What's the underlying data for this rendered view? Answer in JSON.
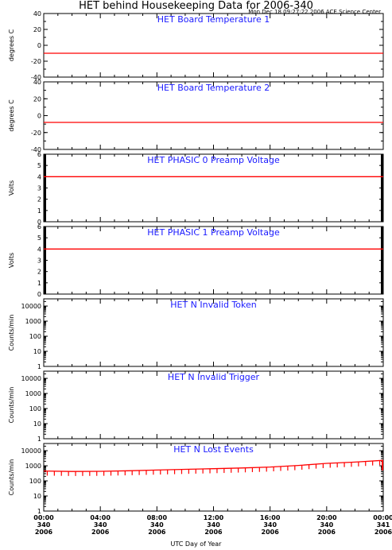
{
  "title": "HET behind Housekeeping Data for 2006-340",
  "timestamp": "Mon Dec 18 09:27:22 2006 ACE Science Center",
  "x_axis_title": "UTC Day of Year",
  "colors": {
    "title_text": "#1a1aff",
    "trace": "#ff0000",
    "axes": "#000000"
  },
  "chart_data": [
    {
      "type": "line",
      "title": "HET Board Temperature 1",
      "ylabel": "degrees C",
      "ylim": [
        -40,
        40
      ],
      "yticks": [
        -40,
        -20,
        0,
        20,
        40
      ],
      "scale": "linear",
      "series": [
        {
          "x": [
            0,
            24
          ],
          "y": [
            -10,
            -10
          ]
        }
      ]
    },
    {
      "type": "line",
      "title": "HET Board Temperature 2",
      "ylabel": "degrees C",
      "ylim": [
        -40,
        40
      ],
      "yticks": [
        -40,
        -20,
        0,
        20,
        40
      ],
      "scale": "linear",
      "series": [
        {
          "x": [
            0,
            24
          ],
          "y": [
            -8,
            -8
          ]
        }
      ]
    },
    {
      "type": "line",
      "title": "HET PHASIC 0 Preamp Voltage",
      "ylabel": "Volts",
      "ylim": [
        0,
        6
      ],
      "yticks": [
        0,
        1,
        2,
        3,
        4,
        5,
        6
      ],
      "scale": "linear",
      "series": [
        {
          "x": [
            0,
            24
          ],
          "y": [
            4,
            4
          ]
        }
      ]
    },
    {
      "type": "line",
      "title": "HET PHASIC 1 Preamp Voltage",
      "ylabel": "Volts",
      "ylim": [
        0,
        6
      ],
      "yticks": [
        0,
        1,
        2,
        3,
        4,
        5,
        6
      ],
      "scale": "linear",
      "series": [
        {
          "x": [
            0,
            24
          ],
          "y": [
            4,
            4
          ]
        }
      ]
    },
    {
      "type": "line",
      "title": "HET N Invalid Token",
      "ylabel": "Counts/min",
      "ylim": [
        1,
        30000
      ],
      "yticks": [
        1,
        10,
        100,
        1000,
        10000
      ],
      "scale": "log",
      "series": []
    },
    {
      "type": "line",
      "title": "HET N Invalid Trigger",
      "ylabel": "Counts/min",
      "ylim": [
        1,
        30000
      ],
      "yticks": [
        1,
        10,
        100,
        1000,
        10000
      ],
      "scale": "log",
      "series": []
    },
    {
      "type": "line",
      "title": "HET N Lost Events",
      "ylabel": "Counts/min",
      "ylim": [
        1,
        30000
      ],
      "yticks": [
        1,
        10,
        100,
        1000,
        10000
      ],
      "scale": "log",
      "series": [
        {
          "x": [
            0,
            2,
            4,
            6,
            8,
            10,
            12,
            14,
            16,
            18,
            20,
            22,
            24
          ],
          "y": [
            450,
            420,
            430,
            470,
            520,
            580,
            640,
            720,
            830,
            1050,
            1450,
            1750,
            2300
          ]
        }
      ]
    }
  ],
  "x_ticks": [
    {
      "time": "00:00",
      "doy": "340",
      "year": "2006"
    },
    {
      "time": "04:00",
      "doy": "340",
      "year": "2006"
    },
    {
      "time": "08:00",
      "doy": "340",
      "year": "2006"
    },
    {
      "time": "12:00",
      "doy": "340",
      "year": "2006"
    },
    {
      "time": "16:00",
      "doy": "340",
      "year": "2006"
    },
    {
      "time": "20:00",
      "doy": "340",
      "year": "2006"
    },
    {
      "time": "00:00",
      "doy": "341",
      "year": "2006"
    }
  ]
}
